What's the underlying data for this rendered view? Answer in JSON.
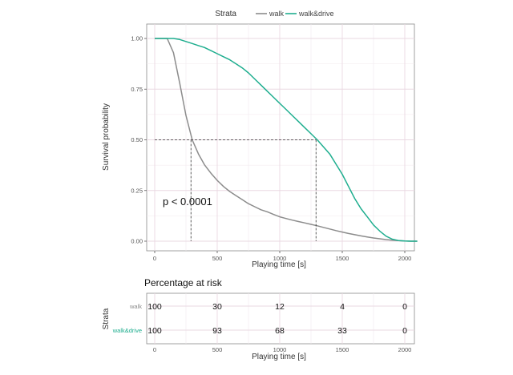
{
  "chart_data": [
    {
      "type": "line",
      "legend_title": "Strata",
      "legend_position": "top",
      "xlabel": "Playing time [s]",
      "ylabel": "Survival probability",
      "xlim": [
        0,
        2100
      ],
      "ylim": [
        0,
        1
      ],
      "xticks": [
        0,
        500,
        1000,
        1500,
        2000
      ],
      "xtick_labels": [
        "0",
        "500",
        "1000",
        "1500",
        "2000"
      ],
      "yticks": [
        0,
        0.25,
        0.5,
        0.75,
        1
      ],
      "ytick_labels": [
        "0.00",
        "0.25",
        "0.50",
        "0.75",
        "1.00"
      ],
      "grid": true,
      "annotation": "p < 0.0001",
      "median_survival": [
        {
          "series": "walk",
          "x": 290,
          "y": 0.5
        },
        {
          "series": "walk&drive",
          "x": 1290,
          "y": 0.5
        }
      ],
      "series": [
        {
          "name": "walk",
          "color": "#8c8c8c",
          "x": [
            0,
            100,
            150,
            200,
            250,
            300,
            350,
            400,
            450,
            500,
            550,
            600,
            650,
            700,
            750,
            800,
            850,
            900,
            950,
            1000,
            1050,
            1100,
            1150,
            1200,
            1250,
            1300,
            1350,
            1400,
            1450,
            1500,
            1550,
            1600,
            1650,
            1700,
            1750,
            1800,
            1850,
            1900,
            1950,
            2000,
            2050,
            2100
          ],
          "y": [
            1.0,
            1.0,
            0.93,
            0.78,
            0.62,
            0.5,
            0.43,
            0.375,
            0.335,
            0.3,
            0.27,
            0.245,
            0.225,
            0.205,
            0.185,
            0.17,
            0.155,
            0.145,
            0.132,
            0.12,
            0.112,
            0.104,
            0.097,
            0.09,
            0.083,
            0.076,
            0.068,
            0.06,
            0.052,
            0.045,
            0.038,
            0.032,
            0.026,
            0.021,
            0.016,
            0.012,
            0.008,
            0.005,
            0.003,
            0.001,
            0.0,
            0.0
          ]
        },
        {
          "name": "walk&drive",
          "color": "#1fae8f",
          "x": [
            0,
            100,
            150,
            200,
            250,
            300,
            350,
            400,
            450,
            500,
            550,
            600,
            650,
            700,
            750,
            800,
            850,
            900,
            950,
            1000,
            1050,
            1100,
            1150,
            1200,
            1250,
            1300,
            1350,
            1400,
            1450,
            1500,
            1550,
            1600,
            1650,
            1700,
            1750,
            1800,
            1850,
            1900,
            1950,
            2000,
            2050,
            2100
          ],
          "y": [
            1.0,
            1.0,
            1.0,
            0.995,
            0.985,
            0.975,
            0.965,
            0.955,
            0.94,
            0.925,
            0.91,
            0.895,
            0.875,
            0.855,
            0.83,
            0.8,
            0.77,
            0.74,
            0.71,
            0.68,
            0.65,
            0.62,
            0.59,
            0.56,
            0.53,
            0.5,
            0.465,
            0.43,
            0.38,
            0.33,
            0.27,
            0.21,
            0.16,
            0.12,
            0.08,
            0.05,
            0.025,
            0.01,
            0.003,
            0.001,
            0.0,
            0.0
          ]
        }
      ]
    },
    {
      "type": "table",
      "title": "Percentage at risk",
      "ylabel": "Strata",
      "xlabel": "Playing time [s]",
      "xlim": [
        0,
        2100
      ],
      "xticks": [
        0,
        500,
        1000,
        1500,
        2000
      ],
      "xtick_labels": [
        "0",
        "500",
        "1000",
        "1500",
        "2000"
      ],
      "rows": [
        {
          "name": "walk",
          "color": "#8c8c8c",
          "values": [
            "100",
            "30",
            "12",
            "4",
            "0"
          ]
        },
        {
          "name": "walk&drive",
          "color": "#1fae8f",
          "values": [
            "100",
            "93",
            "68",
            "33",
            "0"
          ]
        }
      ]
    }
  ]
}
